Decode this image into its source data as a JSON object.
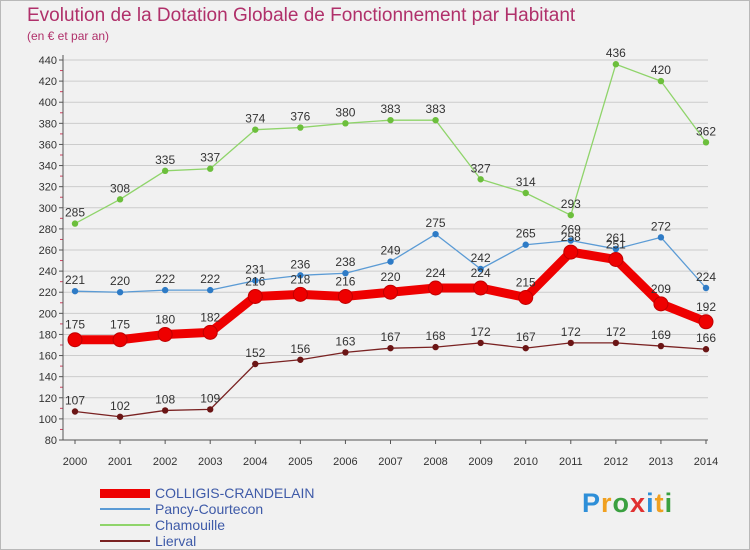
{
  "header": {
    "title": "Evolution de la Dotation Globale de Fonctionnement par Habitant",
    "subtitle": "(en € et par an)"
  },
  "colors": {
    "title": "#b0306a",
    "axis_text": "#333333",
    "grid": "#cccccc",
    "legend_text": "#3e5aa8"
  },
  "chart_data": {
    "type": "line",
    "title": "Evolution de la Dotation Globale de Fonctionnement par Habitant",
    "subtitle": "(en € et par an)",
    "xlabel": "",
    "ylabel": "",
    "ylim": [
      80,
      440
    ],
    "ytick_step": 20,
    "grid": true,
    "legend_position": "bottom-left",
    "categories": [
      "2000",
      "2001",
      "2002",
      "2003",
      "2004",
      "2005",
      "2006",
      "2007",
      "2008",
      "2009",
      "2010",
      "2011",
      "2012",
      "2013",
      "2014"
    ],
    "series": [
      {
        "name": "COLLIGIS-CRANDELAIN",
        "color": "#ee0000",
        "point_color": "#ee0000",
        "emphasis": true,
        "values": [
          175,
          175,
          180,
          182,
          216,
          218,
          216,
          220,
          224,
          224,
          215,
          258,
          251,
          209,
          192
        ]
      },
      {
        "name": "Pancy-Courtecon",
        "color": "#5b9bd5",
        "point_color": "#2e7bc6",
        "emphasis": false,
        "values": [
          221,
          220,
          222,
          222,
          231,
          236,
          238,
          249,
          275,
          242,
          265,
          269,
          261,
          272,
          224
        ]
      },
      {
        "name": "Chamouille",
        "color": "#8fd46a",
        "point_color": "#6cbf3c",
        "emphasis": false,
        "values": [
          285,
          308,
          335,
          337,
          374,
          376,
          380,
          383,
          383,
          327,
          314,
          293,
          436,
          420,
          362
        ]
      },
      {
        "name": "Lierval",
        "color": "#7a2222",
        "point_color": "#6b1515",
        "emphasis": false,
        "values": [
          107,
          102,
          108,
          109,
          152,
          156,
          163,
          167,
          168,
          172,
          167,
          172,
          172,
          169,
          166
        ]
      }
    ]
  },
  "logo": {
    "text": "Proxiti",
    "letters": [
      {
        "ch": "P",
        "color": "#2e8fd8"
      },
      {
        "ch": "r",
        "color": "#f0a020"
      },
      {
        "ch": "o",
        "color": "#3aa040"
      },
      {
        "ch": "x",
        "color": "#e03030"
      },
      {
        "ch": "i",
        "color": "#2e8fd8"
      },
      {
        "ch": "t",
        "color": "#f0a020"
      },
      {
        "ch": "i",
        "color": "#3aa040"
      }
    ]
  }
}
